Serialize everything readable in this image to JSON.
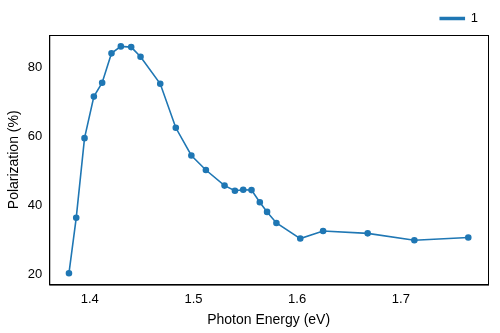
{
  "chart_data": {
    "type": "line",
    "x_label": "Photon Energy (eV)",
    "y_label": "Polarization (%)",
    "series": [
      {
        "name": "1",
        "color": "#1f77b4",
        "marker": "circle",
        "line_style": "solid",
        "x": [
          1.38,
          1.387,
          1.395,
          1.404,
          1.412,
          1.421,
          1.43,
          1.44,
          1.449,
          1.468,
          1.483,
          1.498,
          1.512,
          1.53,
          1.54,
          1.548,
          1.556,
          1.564,
          1.571,
          1.58,
          1.603,
          1.625,
          1.668,
          1.713,
          1.765
        ],
        "values": [
          20.5,
          36.5,
          59.5,
          71.5,
          75.5,
          84.0,
          86.0,
          85.8,
          83.0,
          75.2,
          62.5,
          54.5,
          50.3,
          45.8,
          44.3,
          44.6,
          44.5,
          41.0,
          38.2,
          35.0,
          30.5,
          32.7,
          32.0,
          30.0,
          30.8
        ]
      }
    ],
    "xlim": [
      1.361,
      1.784
    ],
    "xticks": [
      1.4,
      1.5,
      1.6,
      1.7
    ],
    "ylim": [
      17.2,
      89.3
    ],
    "yticks": [
      20,
      40,
      60,
      80
    ],
    "grid": false,
    "legend": "top-right"
  }
}
